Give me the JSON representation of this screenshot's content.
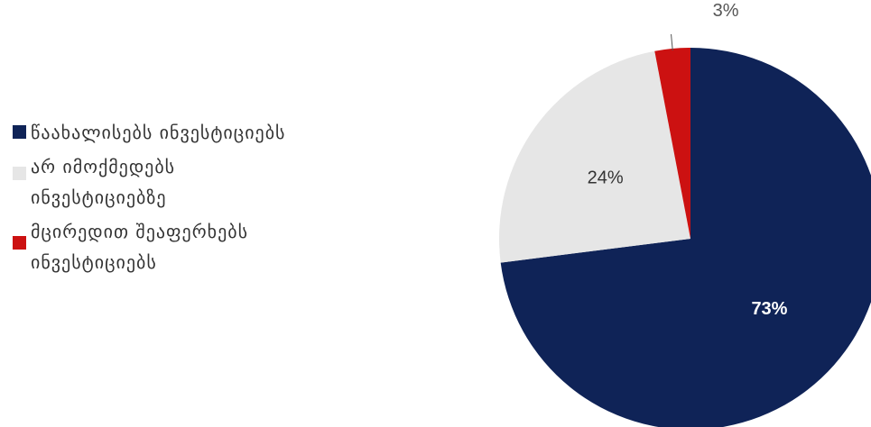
{
  "chart_data": {
    "type": "pie",
    "series": [
      {
        "name": "წაახალისებს ინვესტიციებს",
        "value": 73,
        "label": "73%",
        "color": "#0f2357"
      },
      {
        "name": "არ იმოქმედებს\nინვესტიციებზე",
        "value": 24,
        "label": "24%",
        "color": "#e6e6e6"
      },
      {
        "name": "მცირედით შეაფერხებს\nინვესტიციებს",
        "value": 3,
        "label": "3%",
        "color": "#cc1111"
      }
    ],
    "legend_position": "left",
    "label_colors": [
      "#ffffff",
      "#333333",
      "#555555"
    ]
  }
}
